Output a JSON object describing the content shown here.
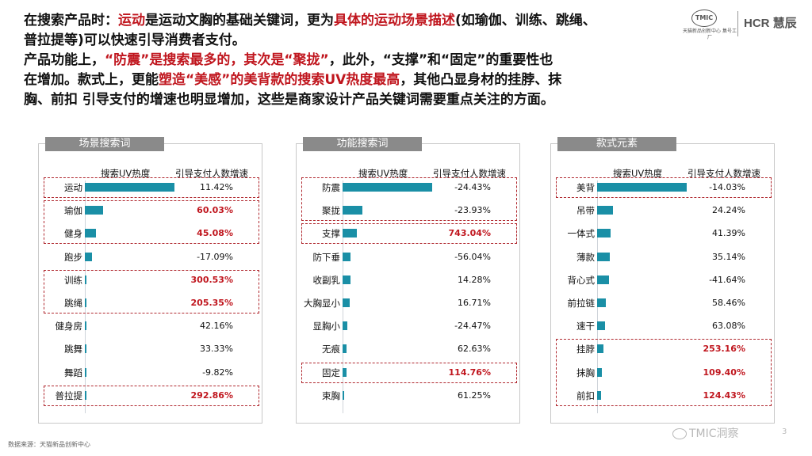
{
  "intro": {
    "line1": [
      {
        "t": "在搜索产品时：",
        "hl": false
      },
      {
        "t": "运动",
        "hl": true
      },
      {
        "t": "是运动文胸的基础关键词，更为",
        "hl": false
      },
      {
        "t": "具体的运动场景描述",
        "hl": true
      },
      {
        "t": "(如瑜伽、训练、跳绳、",
        "hl": false
      }
    ],
    "line2": [
      {
        "t": "普拉提等)可以快速引导消费者支付。",
        "hl": false
      }
    ],
    "line3": [
      {
        "t": "产品功能上，",
        "hl": false
      },
      {
        "t": "“防震”是搜索最多的，其次是“聚拢”",
        "hl": true
      },
      {
        "t": "，此外，“支撑”和“固定”的重要性也",
        "hl": false
      }
    ],
    "line4": [
      {
        "t": "在增加。款式上，更能",
        "hl": false
      },
      {
        "t": "塑造“美感”的美背款的搜索UV热度最高",
        "hl": true
      },
      {
        "t": "，其他凸显身材的挂脖、抹",
        "hl": false
      }
    ],
    "line5": [
      {
        "t": "胸、前扣 引导支付的增速也明显增加，这些是商家设计产品关键词需要重点关注的方面。",
        "hl": false
      }
    ]
  },
  "logos": {
    "tmic_mark": "TMIC",
    "tmic_sub": "天猫新品创新中心 集号工厂",
    "hcr": "HCR 慧辰"
  },
  "colors": {
    "bar": "#1a8fa6",
    "highlight": "#c0161e",
    "tab": "#8a8a8a"
  },
  "source": "数据来源：天猫新品创新中心",
  "watermark": "TMIC洞察",
  "page_number": "3",
  "chart_data": [
    {
      "type": "bar",
      "title": "场景搜索词",
      "col_bar": "搜索UV热度",
      "col_value": "引导支付人数增速",
      "categories": [
        "运动",
        "瑜伽",
        "健身",
        "跑步",
        "训练",
        "跳绳",
        "健身房",
        "跳舞",
        "舞蹈",
        "普拉提"
      ],
      "uv_heat": [
        100,
        20,
        12,
        8,
        1,
        1,
        0,
        0,
        0,
        0
      ],
      "growth": [
        "11.42%",
        "60.03%",
        "45.08%",
        "-17.09%",
        "300.53%",
        "205.35%",
        "42.16%",
        "33.33%",
        "-9.82%",
        "292.86%"
      ],
      "emphasized": [
        false,
        true,
        true,
        false,
        true,
        true,
        false,
        false,
        false,
        true
      ],
      "highlight_groups": [
        [
          0,
          0
        ],
        [
          1,
          2
        ],
        [
          4,
          5
        ],
        [
          9,
          9
        ]
      ]
    },
    {
      "type": "bar",
      "title": "功能搜索词",
      "col_bar": "搜索UV热度",
      "col_value": "引导支付人数增速",
      "categories": [
        "防震",
        "聚拢",
        "支撑",
        "防下垂",
        "收副乳",
        "大胸显小",
        "显胸小",
        "无痕",
        "固定",
        "束胸"
      ],
      "uv_heat": [
        100,
        22,
        16,
        9,
        9,
        8,
        5,
        4,
        4,
        2
      ],
      "growth": [
        "-24.43%",
        "-23.93%",
        "743.04%",
        "-56.04%",
        "14.28%",
        "16.71%",
        "-24.47%",
        "62.63%",
        "114.76%",
        "61.25%"
      ],
      "emphasized": [
        false,
        false,
        true,
        false,
        false,
        false,
        false,
        false,
        true,
        false
      ],
      "highlight_groups": [
        [
          0,
          1
        ],
        [
          2,
          2
        ],
        [
          8,
          8
        ]
      ]
    },
    {
      "type": "bar",
      "title": "款式元素",
      "col_bar": "搜索UV热度",
      "col_value": "引导支付人数增速",
      "categories": [
        "美背",
        "吊带",
        "一体式",
        "薄款",
        "背心式",
        "前拉链",
        "速干",
        "挂脖",
        "抹胸",
        "前扣"
      ],
      "uv_heat": [
        100,
        18,
        15,
        14,
        13,
        10,
        9,
        7,
        5,
        4
      ],
      "growth": [
        "-14.03%",
        "24.24%",
        "41.39%",
        "35.14%",
        "-41.64%",
        "58.46%",
        "63.08%",
        "253.16%",
        "109.40%",
        "124.43%"
      ],
      "emphasized": [
        false,
        false,
        false,
        false,
        false,
        false,
        false,
        true,
        true,
        true
      ],
      "highlight_groups": [
        [
          0,
          0
        ],
        [
          7,
          9
        ]
      ]
    }
  ]
}
